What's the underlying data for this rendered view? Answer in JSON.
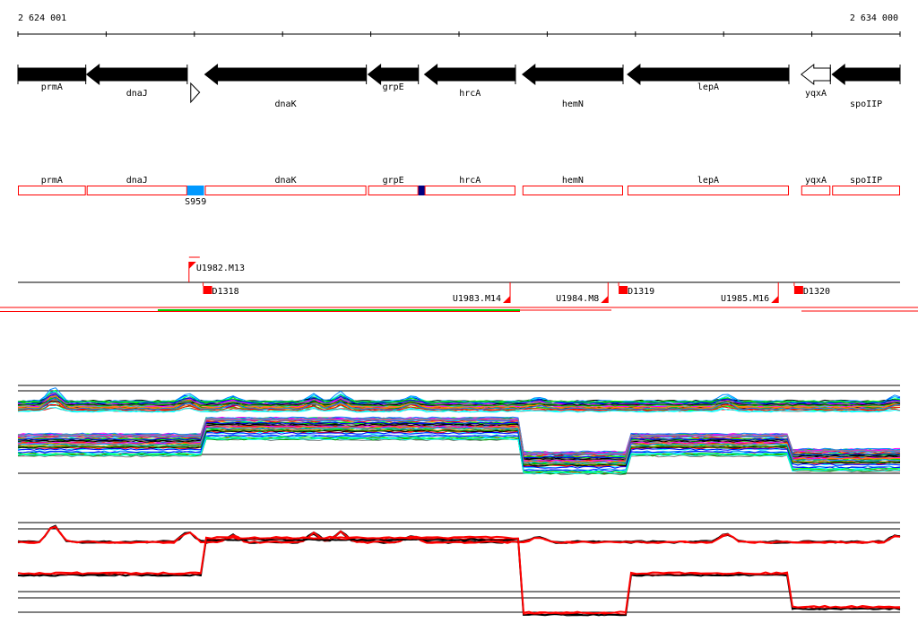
{
  "ruler": {
    "start_label": "2 624 001",
    "end_label": "2 634 000",
    "start": 2624001,
    "end": 2634000
  },
  "genes": [
    {
      "name": "prmA",
      "start": 2624001,
      "end": 2624770,
      "strand": "-",
      "style": "filled"
    },
    {
      "name": "dnaJ",
      "start": 2624780,
      "end": 2625920,
      "strand": "-",
      "style": "filled"
    },
    {
      "name": "dnaK",
      "start": 2626120,
      "end": 2627950,
      "strand": "-",
      "style": "filled"
    },
    {
      "name": "grpE",
      "start": 2627970,
      "end": 2628540,
      "strand": "-",
      "style": "filled"
    },
    {
      "name": "hrcA",
      "start": 2628610,
      "end": 2629640,
      "strand": "-",
      "style": "filled"
    },
    {
      "name": "hemN",
      "start": 2629720,
      "end": 2630860,
      "strand": "-",
      "style": "filled"
    },
    {
      "name": "lepA",
      "start": 2630910,
      "end": 2632740,
      "strand": "-",
      "style": "filled"
    },
    {
      "name": "yqxA",
      "start": 2632880,
      "end": 2633210,
      "strand": "-",
      "style": "open"
    },
    {
      "name": "spoIIP",
      "start": 2633230,
      "end": 2634000,
      "strand": "-",
      "style": "filled"
    }
  ],
  "small_feature": {
    "start": 2625960,
    "end": 2626060,
    "strand": "+"
  },
  "annotations": [
    {
      "name": "S959",
      "start": 2625920,
      "end": 2626110,
      "color": "#0099ff"
    },
    {
      "name": "",
      "start": 2628540,
      "end": 2628610,
      "color": "#000080"
    }
  ],
  "segments": [
    {
      "name": "U1982.M13",
      "pos": 2625940,
      "side": "top"
    },
    {
      "name": "D1318",
      "pos": 2626100,
      "side": "bottom"
    },
    {
      "name": "U1983.M14",
      "pos": 2629580,
      "side": "bottom-left"
    },
    {
      "name": "D1319",
      "pos": 2630810,
      "side": "bottom"
    },
    {
      "name": "U1984.M8",
      "pos": 2630690,
      "side": "bottom-left"
    },
    {
      "name": "U1985.M16",
      "pos": 2632620,
      "side": "bottom-left"
    },
    {
      "name": "D1320",
      "pos": 2632800,
      "side": "bottom"
    }
  ],
  "colors": {
    "gene_box": "#ff0000",
    "segment": "#ff0000",
    "transcript_green": "#00cc00",
    "gene": "#000000"
  }
}
